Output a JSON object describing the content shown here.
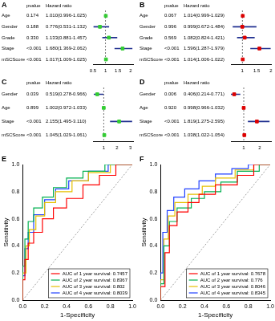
{
  "chart_data": [
    {
      "type": "forest",
      "panel": "A",
      "column_headers": [
        "pvalue",
        "Hazard ratio"
      ],
      "categories": [
        "Age",
        "Gender",
        "Grade",
        "Stage",
        "mSCScore"
      ],
      "pvalues": [
        "0.174",
        "0.188",
        "0.330",
        "<0.001",
        "<0.001"
      ],
      "values": [
        1.01,
        0.776,
        1.133,
        1.68,
        1.017
      ],
      "lower": [
        0.996,
        0.531,
        0.881,
        1.369,
        1.009
      ],
      "upper": [
        1.025,
        1.132,
        1.457,
        2.062,
        1.025
      ],
      "value_labels": [
        "1.010(0.996-1.025)",
        "0.776(0.531-1.132)",
        "1.133(0.881-1.457)",
        "1.680(1.369-2.062)",
        "1.017(1.009-1.025)"
      ],
      "color": "#33cc33",
      "marker": "square",
      "reference_line": 1,
      "xlim": [
        0.5,
        2.1
      ],
      "xticks": [
        0.5,
        1,
        1.5,
        2
      ],
      "grid": false
    },
    {
      "type": "forest",
      "panel": "B",
      "column_headers": [
        "pvalue",
        "Hazard ratio"
      ],
      "categories": [
        "Age",
        "Gender",
        "Grade",
        "Stage",
        "mSCScore"
      ],
      "pvalues": [
        "0.067",
        "0.996",
        "0.569",
        "<0.001",
        "<0.001"
      ],
      "values": [
        1.014,
        0.999,
        1.082,
        1.596,
        1.014
      ],
      "lower": [
        0.999,
        0.672,
        0.824,
        1.287,
        1.006
      ],
      "upper": [
        1.029,
        1.484,
        1.421,
        1.979,
        1.022
      ],
      "value_labels": [
        "1.014(0.999-1.029)",
        "0.999(0.672-1.484)",
        "1.082(0.824-1.421)",
        "1.596(1.287-1.979)",
        "1.014(1.006-1.022)"
      ],
      "color": "#dd0000",
      "marker": "square",
      "reference_line": 1,
      "xlim": [
        0.6,
        2.0
      ],
      "xticks": [
        1,
        1.5,
        2
      ],
      "grid": false
    },
    {
      "type": "forest",
      "panel": "C",
      "column_headers": [
        "pvalue",
        "Hazard ratio"
      ],
      "categories": [
        "Gender",
        "Age",
        "Stage",
        "mSCScore"
      ],
      "pvalues": [
        "0.039",
        "0.899",
        "<0.001",
        "<0.001"
      ],
      "values": [
        0.519,
        1.002,
        2.155,
        1.045
      ],
      "lower": [
        0.278,
        0.972,
        1.495,
        1.029
      ],
      "upper": [
        0.966,
        1.033,
        3.11,
        1.061
      ],
      "value_labels": [
        "0.519(0.278-0.966)",
        "1.002(0.972-1.033)",
        "2.155(1.495-3.110)",
        "1.045(1.029-1.061)"
      ],
      "color": "#33cc33",
      "marker": "square",
      "reference_line": 1,
      "xlim": [
        0.2,
        3.2
      ],
      "xticks": [
        1,
        2,
        3
      ],
      "grid": false
    },
    {
      "type": "forest",
      "panel": "D",
      "column_headers": [
        "pvalue",
        "Hazard ratio"
      ],
      "categories": [
        "Gender",
        "Age",
        "Stage",
        "mSCScore"
      ],
      "pvalues": [
        "0.006",
        "0.920",
        "<0.001",
        "<0.001"
      ],
      "values": [
        0.406,
        0.998,
        1.819,
        1.038
      ],
      "lower": [
        0.214,
        0.966,
        1.275,
        1.022
      ],
      "upper": [
        0.771,
        1.032,
        2.595,
        1.054
      ],
      "value_labels": [
        "0.406(0.214-0.771)",
        "0.998(0.966-1.032)",
        "1.819(1.275-2.595)",
        "1.038(1.022-1.054)"
      ],
      "color": "#dd0000",
      "marker": "square",
      "reference_line": 1,
      "xlim": [
        0.2,
        2.7
      ],
      "xticks": [
        1,
        2
      ],
      "grid": false
    },
    {
      "type": "line",
      "panel": "E",
      "x_label": "1-Specificity",
      "y_label": "Sensitivity",
      "series": [
        {
          "name": "AUC of 1 year survival: 0.7457",
          "color": "#ff0000",
          "x": [
            0,
            0,
            0.02,
            0.02,
            0.05,
            0.05,
            0.1,
            0.1,
            0.18,
            0.18,
            0.28,
            0.28,
            0.4,
            0.4,
            0.55,
            0.55,
            0.7,
            0.7,
            0.85,
            0.85,
            1
          ],
          "y": [
            0,
            0.15,
            0.15,
            0.3,
            0.3,
            0.42,
            0.42,
            0.5,
            0.5,
            0.6,
            0.6,
            0.68,
            0.68,
            0.75,
            0.75,
            0.85,
            0.85,
            0.92,
            0.92,
            1,
            1
          ]
        },
        {
          "name": "AUC of 2 year survival: 0.8367",
          "color": "#00b050",
          "x": [
            0,
            0,
            0.02,
            0.02,
            0.05,
            0.05,
            0.1,
            0.1,
            0.18,
            0.18,
            0.28,
            0.28,
            0.4,
            0.4,
            0.55,
            0.55,
            0.75,
            0.75,
            1
          ],
          "y": [
            0,
            0.25,
            0.25,
            0.45,
            0.45,
            0.58,
            0.58,
            0.68,
            0.68,
            0.76,
            0.76,
            0.83,
            0.83,
            0.9,
            0.9,
            0.95,
            0.95,
            1,
            1
          ]
        },
        {
          "name": "AUC of 3 year survival: 0.802",
          "color": "#e6c000",
          "x": [
            0,
            0,
            0.03,
            0.03,
            0.06,
            0.06,
            0.12,
            0.12,
            0.2,
            0.2,
            0.3,
            0.3,
            0.45,
            0.45,
            0.6,
            0.6,
            0.8,
            0.8,
            1
          ],
          "y": [
            0,
            0.2,
            0.2,
            0.4,
            0.4,
            0.52,
            0.52,
            0.62,
            0.62,
            0.72,
            0.72,
            0.8,
            0.8,
            0.88,
            0.88,
            0.94,
            0.94,
            1,
            1
          ]
        },
        {
          "name": "AUC of 4 year survival: 0.8039",
          "color": "#2040ff",
          "x": [
            0,
            0,
            0.02,
            0.02,
            0.05,
            0.05,
            0.1,
            0.1,
            0.2,
            0.2,
            0.3,
            0.3,
            0.42,
            0.42,
            0.6,
            0.6,
            0.78,
            0.78,
            1
          ],
          "y": [
            0,
            0.18,
            0.18,
            0.38,
            0.38,
            0.5,
            0.5,
            0.63,
            0.63,
            0.74,
            0.74,
            0.82,
            0.82,
            0.88,
            0.88,
            0.95,
            0.95,
            1,
            1
          ]
        }
      ],
      "reference_line": {
        "x": [
          0,
          1
        ],
        "y": [
          0,
          1
        ]
      },
      "legend": "lower right",
      "grid": false,
      "xlim": [
        0,
        1
      ],
      "ylim": [
        0,
        1
      ],
      "xticks": [
        {
          "value": 0,
          "label": "0.0"
        },
        0.2,
        0.4,
        0.6,
        0.8,
        {
          "value": 1,
          "label": "1.0"
        }
      ],
      "yticks": [
        {
          "value": 0,
          "label": "0.0"
        },
        0.2,
        0.4,
        0.6,
        0.8,
        {
          "value": 1,
          "label": "1.0"
        }
      ]
    },
    {
      "type": "line",
      "panel": "F",
      "x_label": "1-Specificity",
      "y_label": "Sensitivity",
      "series": [
        {
          "name": "AUC of 1 year survival: 0.7678",
          "color": "#ff0000",
          "x": [
            0,
            0,
            0.04,
            0.04,
            0.08,
            0.08,
            0.15,
            0.15,
            0.25,
            0.25,
            0.35,
            0.35,
            0.5,
            0.5,
            0.7,
            0.7,
            0.85,
            0.85,
            1
          ],
          "y": [
            0,
            0.1,
            0.1,
            0.35,
            0.35,
            0.55,
            0.55,
            0.65,
            0.65,
            0.72,
            0.72,
            0.78,
            0.78,
            0.85,
            0.85,
            0.92,
            0.92,
            1,
            1
          ]
        },
        {
          "name": "AUC of 2 year survival: 0.776",
          "color": "#00b050",
          "x": [
            0,
            0,
            0.03,
            0.03,
            0.08,
            0.08,
            0.15,
            0.15,
            0.28,
            0.28,
            0.4,
            0.4,
            0.55,
            0.55,
            0.7,
            0.7,
            0.9,
            0.9,
            1
          ],
          "y": [
            0,
            0.12,
            0.12,
            0.4,
            0.4,
            0.58,
            0.58,
            0.68,
            0.68,
            0.75,
            0.75,
            0.8,
            0.8,
            0.87,
            0.87,
            0.95,
            0.95,
            1,
            1
          ]
        },
        {
          "name": "AUC of 3 year survival: 0.8046",
          "color": "#e6c000",
          "x": [
            0,
            0,
            0.03,
            0.03,
            0.07,
            0.07,
            0.13,
            0.13,
            0.25,
            0.25,
            0.38,
            0.38,
            0.5,
            0.5,
            0.68,
            0.68,
            0.85,
            0.85,
            1
          ],
          "y": [
            0,
            0.15,
            0.15,
            0.45,
            0.45,
            0.62,
            0.62,
            0.72,
            0.72,
            0.78,
            0.78,
            0.84,
            0.84,
            0.9,
            0.9,
            0.96,
            0.96,
            1,
            1
          ]
        },
        {
          "name": "AUC of 4 year survival: 0.8345",
          "color": "#2040ff",
          "x": [
            0,
            0,
            0.02,
            0.02,
            0.06,
            0.06,
            0.12,
            0.12,
            0.22,
            0.22,
            0.35,
            0.35,
            0.5,
            0.5,
            0.65,
            0.65,
            0.8,
            0.8,
            1
          ],
          "y": [
            0,
            0.2,
            0.2,
            0.5,
            0.5,
            0.66,
            0.66,
            0.76,
            0.76,
            0.82,
            0.82,
            0.88,
            0.88,
            0.93,
            0.93,
            0.97,
            0.97,
            1,
            1
          ]
        }
      ],
      "reference_line": {
        "x": [
          0,
          1
        ],
        "y": [
          0,
          1
        ]
      },
      "legend": "lower right",
      "grid": false,
      "xlim": [
        0,
        1
      ],
      "ylim": [
        0,
        1
      ],
      "xticks": [
        {
          "value": 0,
          "label": "0.0"
        },
        0.2,
        0.4,
        0.6,
        0.8,
        {
          "value": 1,
          "label": "1.0"
        }
      ],
      "yticks": [
        {
          "value": 0,
          "label": "0.0"
        },
        0.2,
        0.4,
        0.6,
        0.8,
        {
          "value": 1,
          "label": "1.0"
        }
      ]
    }
  ]
}
